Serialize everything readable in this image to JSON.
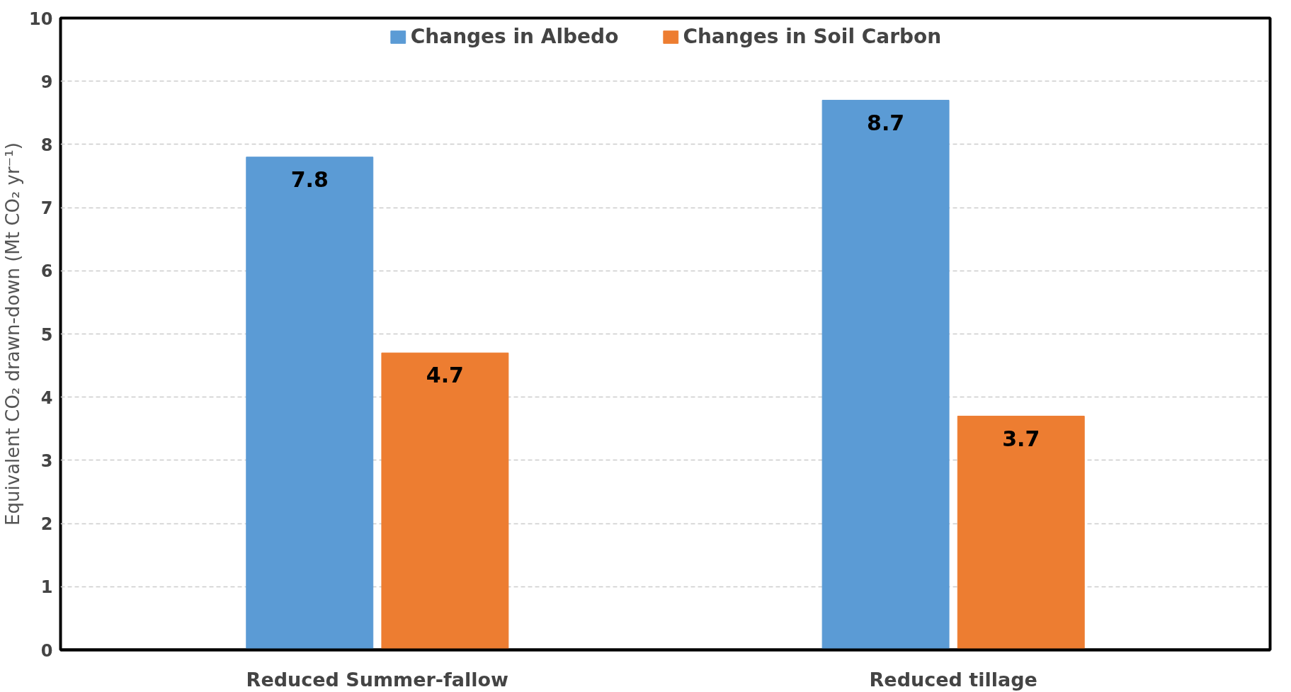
{
  "chart_data": {
    "type": "bar",
    "ylabel": "Equivalent CO₂ drawn-down (Mt CO₂ yr⁻¹)",
    "categories": [
      "Reduced Summer-fallow",
      "Reduced tillage"
    ],
    "series": [
      {
        "name": "Changes in Albedo",
        "color": "#5b9bd5",
        "values": [
          7.8,
          8.7
        ]
      },
      {
        "name": "Changes in Soil Carbon",
        "color": "#ed7d31",
        "values": [
          4.7,
          3.7
        ]
      }
    ],
    "ylim": [
      0,
      10
    ],
    "yticks": [
      0,
      1,
      2,
      3,
      4,
      5,
      6,
      7,
      8,
      9,
      10
    ],
    "grid": "y",
    "legend": "top",
    "data_labels": true
  }
}
